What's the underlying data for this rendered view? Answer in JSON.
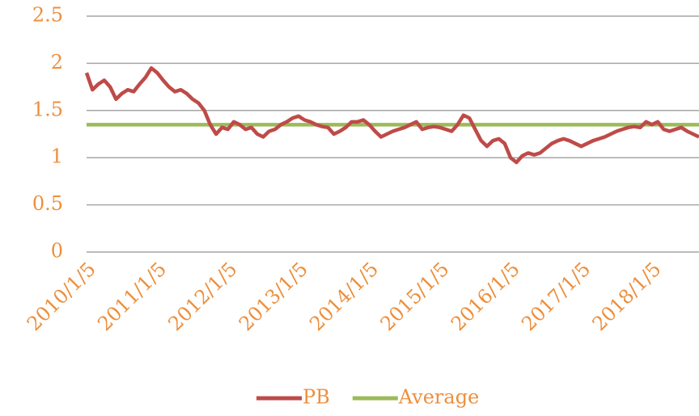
{
  "chart_data": {
    "type": "line",
    "categories": [
      "2010/1/5",
      null,
      null,
      null,
      null,
      null,
      null,
      null,
      null,
      null,
      null,
      null,
      "2011/1/5",
      null,
      null,
      null,
      null,
      null,
      null,
      null,
      null,
      null,
      null,
      null,
      "2012/1/5",
      null,
      null,
      null,
      null,
      null,
      null,
      null,
      null,
      null,
      null,
      null,
      "2013/1/5",
      null,
      null,
      null,
      null,
      null,
      null,
      null,
      null,
      null,
      null,
      null,
      "2014/1/5",
      null,
      null,
      null,
      null,
      null,
      null,
      null,
      null,
      null,
      null,
      null,
      "2015/1/5",
      null,
      null,
      null,
      null,
      null,
      null,
      null,
      null,
      null,
      null,
      null,
      "2016/1/5",
      null,
      null,
      null,
      null,
      null,
      null,
      null,
      null,
      null,
      null,
      null,
      "2017/1/5",
      null,
      null,
      null,
      null,
      null,
      null,
      null,
      null,
      null,
      null,
      null,
      "2018/1/5",
      null,
      null,
      null,
      null,
      null,
      null,
      null,
      null
    ],
    "series": [
      {
        "name": "PB",
        "color": "#be4b48",
        "values": [
          1.9,
          1.72,
          1.78,
          1.82,
          1.75,
          1.62,
          1.68,
          1.72,
          1.7,
          1.78,
          1.85,
          1.95,
          1.9,
          1.82,
          1.75,
          1.7,
          1.72,
          1.68,
          1.62,
          1.58,
          1.5,
          1.35,
          1.25,
          1.32,
          1.3,
          1.38,
          1.35,
          1.3,
          1.32,
          1.25,
          1.22,
          1.28,
          1.3,
          1.35,
          1.38,
          1.42,
          1.44,
          1.4,
          1.38,
          1.35,
          1.33,
          1.32,
          1.25,
          1.28,
          1.32,
          1.38,
          1.38,
          1.4,
          1.35,
          1.28,
          1.22,
          1.25,
          1.28,
          1.3,
          1.32,
          1.35,
          1.38,
          1.3,
          1.32,
          1.33,
          1.32,
          1.3,
          1.28,
          1.35,
          1.45,
          1.42,
          1.3,
          1.18,
          1.12,
          1.18,
          1.2,
          1.15,
          1.0,
          0.95,
          1.02,
          1.05,
          1.03,
          1.05,
          1.1,
          1.15,
          1.18,
          1.2,
          1.18,
          1.15,
          1.12,
          1.15,
          1.18,
          1.2,
          1.22,
          1.25,
          1.28,
          1.3,
          1.32,
          1.33,
          1.32,
          1.38,
          1.35,
          1.38,
          1.3,
          1.28,
          1.3,
          1.32,
          1.28,
          1.25,
          1.22
        ]
      },
      {
        "name": "Average",
        "color": "#9bbb59",
        "values": [
          1.35,
          1.35,
          1.35,
          1.35,
          1.35,
          1.35,
          1.35,
          1.35,
          1.35,
          1.35,
          1.35,
          1.35,
          1.35,
          1.35,
          1.35,
          1.35,
          1.35,
          1.35,
          1.35,
          1.35,
          1.35,
          1.35,
          1.35,
          1.35,
          1.35,
          1.35,
          1.35,
          1.35,
          1.35,
          1.35,
          1.35,
          1.35,
          1.35,
          1.35,
          1.35,
          1.35,
          1.35,
          1.35,
          1.35,
          1.35,
          1.35,
          1.35,
          1.35,
          1.35,
          1.35,
          1.35,
          1.35,
          1.35,
          1.35,
          1.35,
          1.35,
          1.35,
          1.35,
          1.35,
          1.35,
          1.35,
          1.35,
          1.35,
          1.35,
          1.35,
          1.35,
          1.35,
          1.35,
          1.35,
          1.35,
          1.35,
          1.35,
          1.35,
          1.35,
          1.35,
          1.35,
          1.35,
          1.35,
          1.35,
          1.35,
          1.35,
          1.35,
          1.35,
          1.35,
          1.35,
          1.35,
          1.35,
          1.35,
          1.35,
          1.35,
          1.35,
          1.35,
          1.35,
          1.35,
          1.35,
          1.35,
          1.35,
          1.35,
          1.35,
          1.35,
          1.35,
          1.35,
          1.35,
          1.35,
          1.35,
          1.35,
          1.35,
          1.35,
          1.35,
          1.35
        ]
      }
    ],
    "ylim": [
      0,
      2.5
    ],
    "yticks": [
      0,
      0.5,
      1,
      1.5,
      2,
      2.5
    ],
    "grid": true,
    "legend": "bottom"
  }
}
